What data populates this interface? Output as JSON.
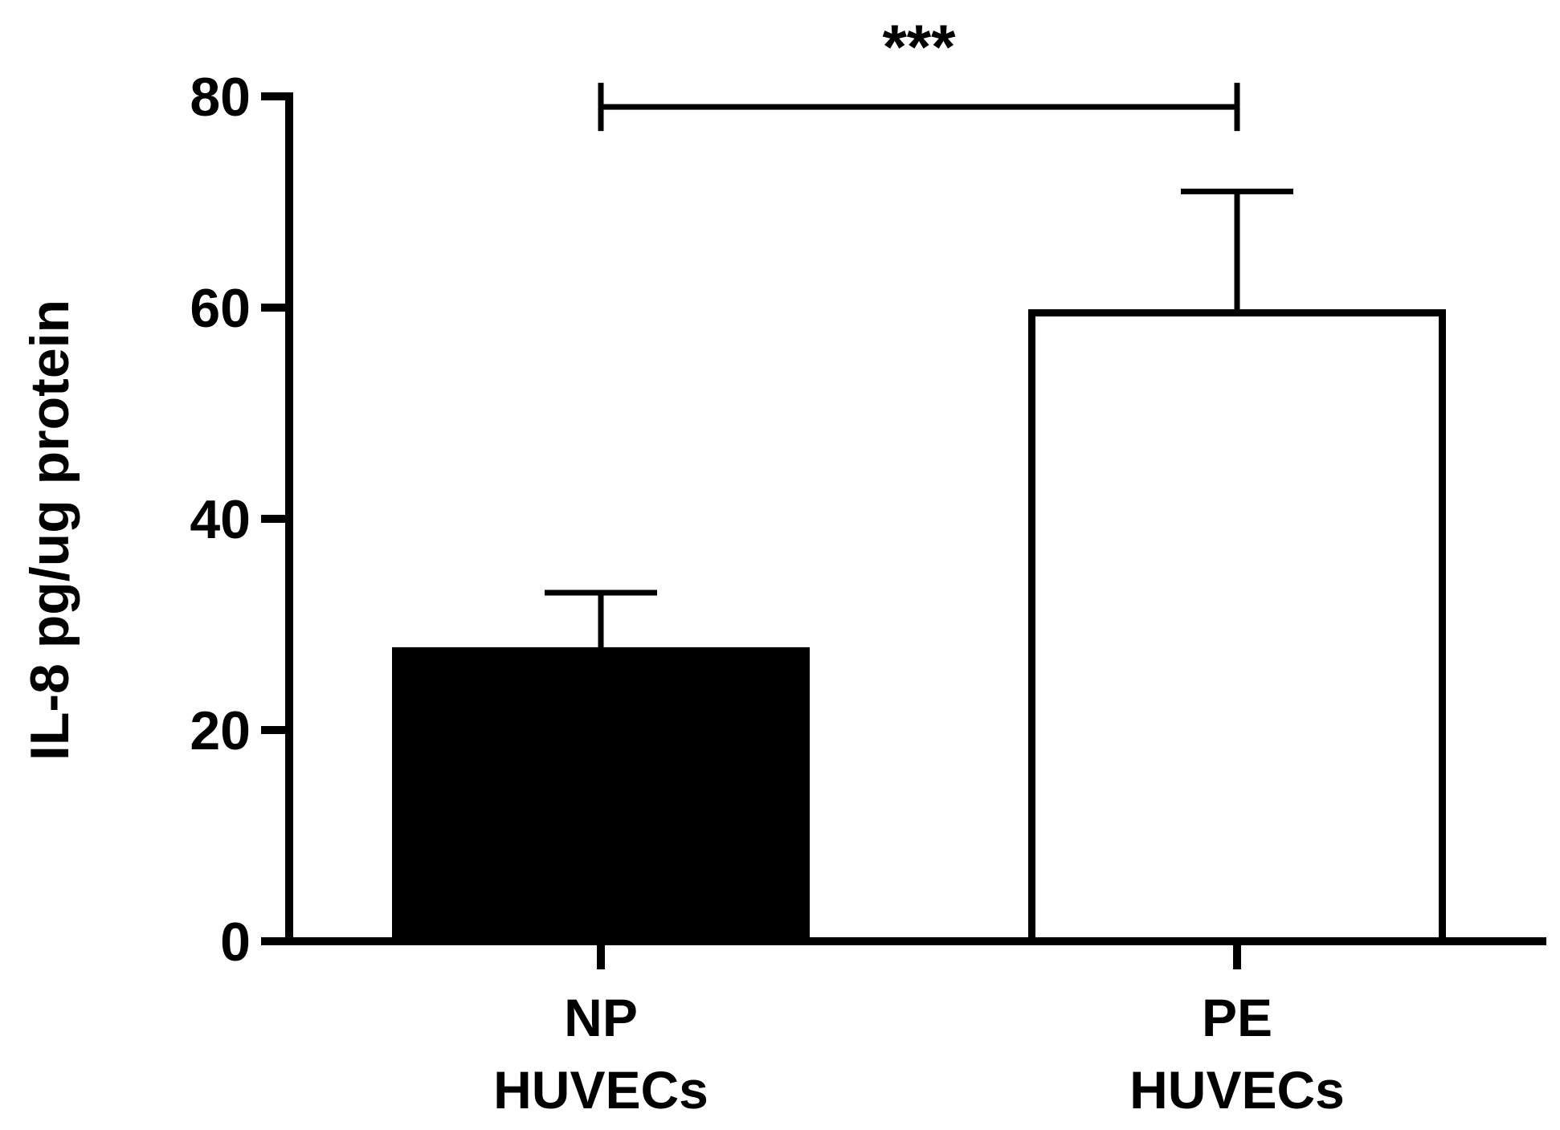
{
  "chart_data": {
    "type": "bar",
    "title": "",
    "xlabel": "",
    "ylabel": "IL-8 pg/ug protein",
    "ylim": [
      0,
      80
    ],
    "yticks": [
      0,
      20,
      40,
      60,
      80
    ],
    "grid": false,
    "legend": "none",
    "categories": [
      {
        "line1": "NP",
        "line2": "HUVECs"
      },
      {
        "line1": "PE",
        "line2": "HUVECs"
      }
    ],
    "values": [
      27.5,
      59.5
    ],
    "error_upper": [
      33.0,
      71.0
    ],
    "bar_fills": [
      "#000000",
      "#ffffff"
    ],
    "bar_stroke": "#000000",
    "significance": {
      "between": [
        0,
        1
      ],
      "level": 79,
      "label": "***"
    }
  }
}
